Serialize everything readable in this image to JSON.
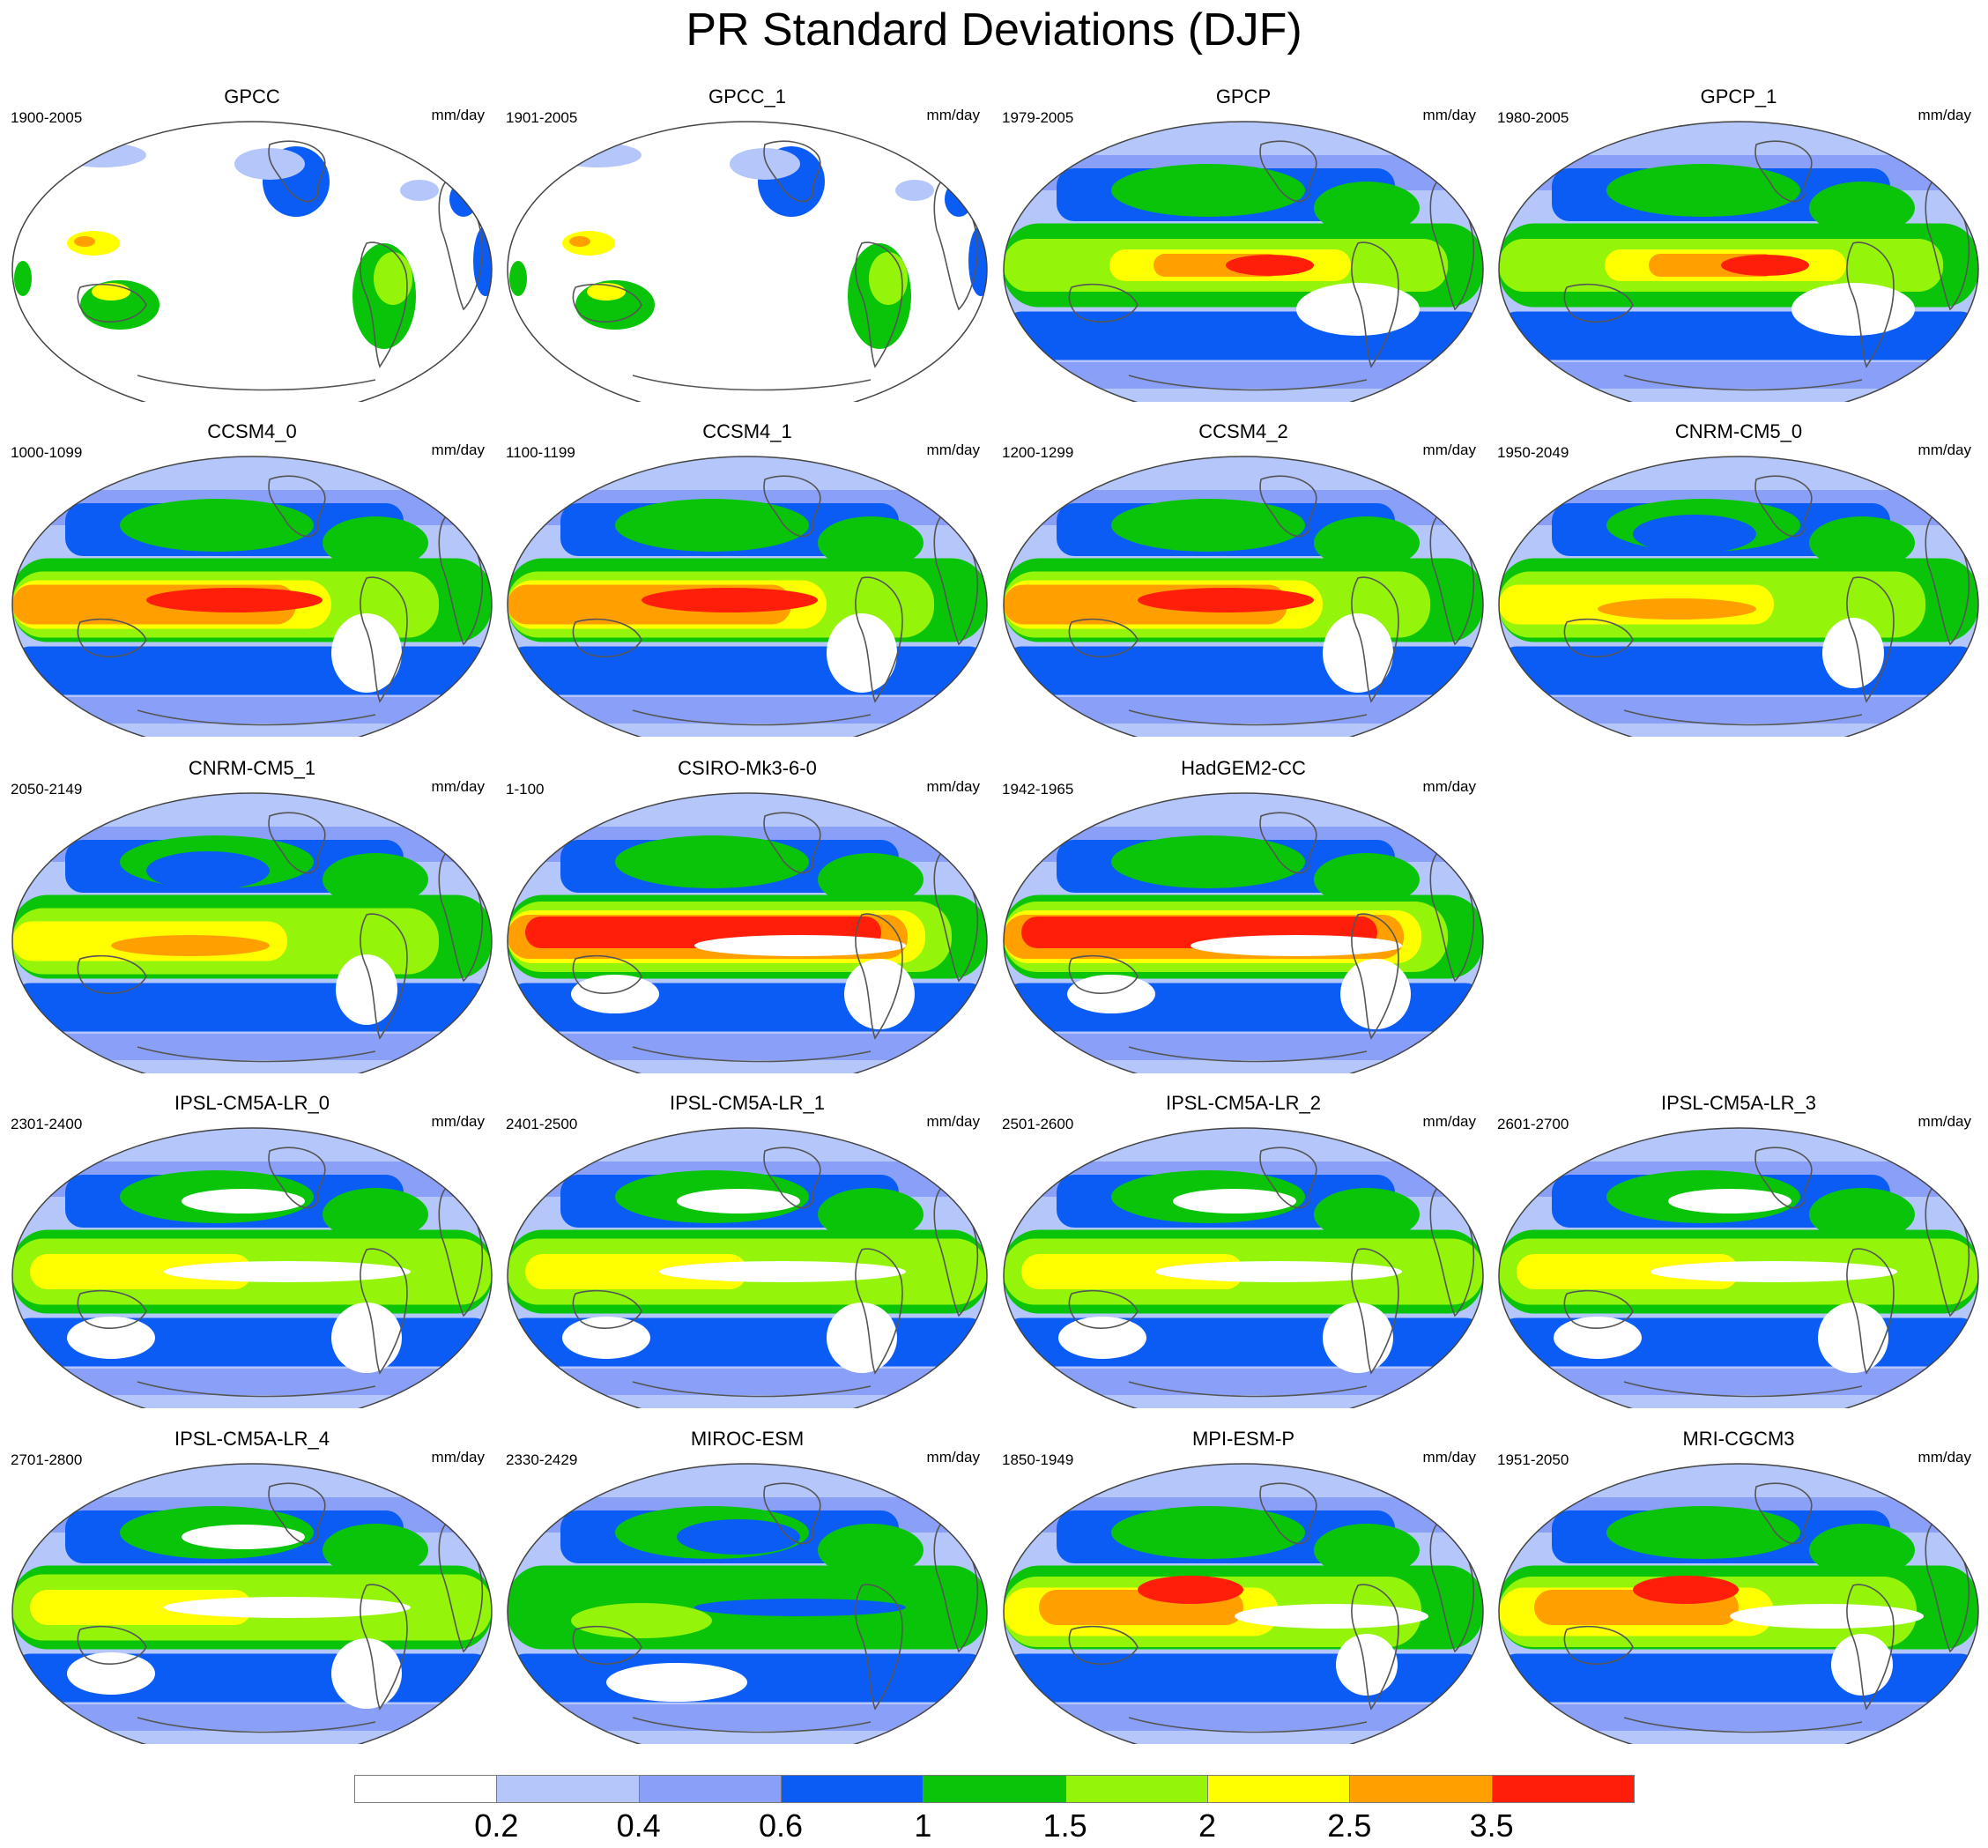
{
  "title": "PR Standard Deviations (DJF)",
  "units": "mm/day",
  "panels": [
    {
      "name": "GPCC",
      "years": "1900-2005",
      "style": "obs"
    },
    {
      "name": "GPCC_1",
      "years": "1901-2005",
      "style": "obs"
    },
    {
      "name": "GPCP",
      "years": "1979-2005",
      "style": "gpcp"
    },
    {
      "name": "GPCP_1",
      "years": "1980-2005",
      "style": "gpcp"
    },
    {
      "name": "CCSM4_0",
      "years": "1000-1099",
      "style": "ccsm"
    },
    {
      "name": "CCSM4_1",
      "years": "1100-1199",
      "style": "ccsm"
    },
    {
      "name": "CCSM4_2",
      "years": "1200-1299",
      "style": "ccsm"
    },
    {
      "name": "CNRM-CM5_0",
      "years": "1950-2049",
      "style": "cnrm"
    },
    {
      "name": "CNRM-CM5_1",
      "years": "2050-2149",
      "style": "cnrm"
    },
    {
      "name": "CSIRO-Mk3-6-0",
      "years": "1-100",
      "style": "csiro"
    },
    {
      "name": "HadGEM2-CC",
      "years": "1942-1965",
      "style": "csiro"
    },
    {
      "name": "IPSL-CM5A-LR_0",
      "years": "2301-2400",
      "style": "ipsl"
    },
    {
      "name": "IPSL-CM5A-LR_1",
      "years": "2401-2500",
      "style": "ipsl"
    },
    {
      "name": "IPSL-CM5A-LR_2",
      "years": "2501-2600",
      "style": "ipsl"
    },
    {
      "name": "IPSL-CM5A-LR_3",
      "years": "2601-2700",
      "style": "ipsl"
    },
    {
      "name": "IPSL-CM5A-LR_4",
      "years": "2701-2800",
      "style": "ipsl"
    },
    {
      "name": "MIROC-ESM",
      "years": "2330-2429",
      "style": "miroc"
    },
    {
      "name": "MPI-ESM-P",
      "years": "1850-1949",
      "style": "mpi"
    },
    {
      "name": "MRI-CGCM3",
      "years": "1951-2050",
      "style": "mpi"
    }
  ],
  "colorbar": {
    "colors": [
      "#ffffff",
      "#b4c6fa",
      "#8aa0f8",
      "#0a5cf5",
      "#0ac40a",
      "#94f50a",
      "#ffff00",
      "#ffa000",
      "#ff1e0a"
    ],
    "labels": [
      "0.2",
      "0.4",
      "0.6",
      "1",
      "1.5",
      "2",
      "2.5",
      "3.5"
    ]
  }
}
